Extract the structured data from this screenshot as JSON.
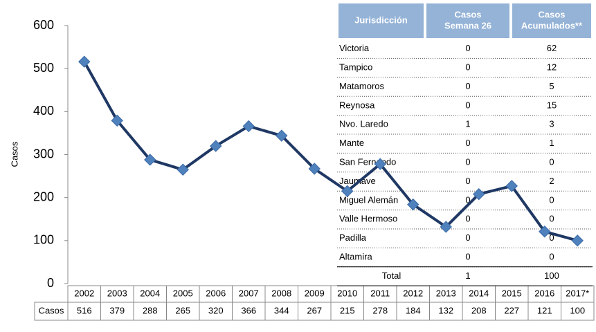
{
  "chart_data": {
    "type": "line",
    "ylabel": "Casos",
    "categories": [
      "2002",
      "2003",
      "2004",
      "2005",
      "2006",
      "2007",
      "2008",
      "2009",
      "2010",
      "2011",
      "2012",
      "2013",
      "2014",
      "2015",
      "2016",
      "2017*"
    ],
    "series": [
      {
        "name": "Casos",
        "color": "#1f3864",
        "marker_color": "#4f81bd",
        "values": [
          516,
          379,
          288,
          265,
          320,
          366,
          344,
          267,
          215,
          278,
          184,
          132,
          208,
          227,
          121,
          100
        ]
      }
    ],
    "ylim": [
      0,
      600
    ],
    "yticks": [
      0,
      100,
      200,
      300,
      400,
      500,
      600
    ]
  },
  "table": {
    "columns": [
      [
        "Jurisdicción"
      ],
      [
        "Casos",
        "Semana 26"
      ],
      [
        "Casos",
        "Acumulados**"
      ]
    ],
    "rows": [
      [
        "Victoria",
        0,
        62
      ],
      [
        "Tampico",
        0,
        12
      ],
      [
        "Matamoros",
        0,
        5
      ],
      [
        "Reynosa",
        0,
        15
      ],
      [
        "Nvo. Laredo",
        1,
        3
      ],
      [
        "Mante",
        0,
        1
      ],
      [
        "San Fernando",
        0,
        0
      ],
      [
        "Jaumave",
        0,
        2
      ],
      [
        "Miguel Alemán",
        0,
        0
      ],
      [
        "Valle Hermoso",
        0,
        0
      ],
      [
        "Padilla",
        0,
        0
      ],
      [
        "Altamira",
        0,
        0
      ]
    ],
    "total": [
      "Total",
      1,
      100
    ]
  }
}
